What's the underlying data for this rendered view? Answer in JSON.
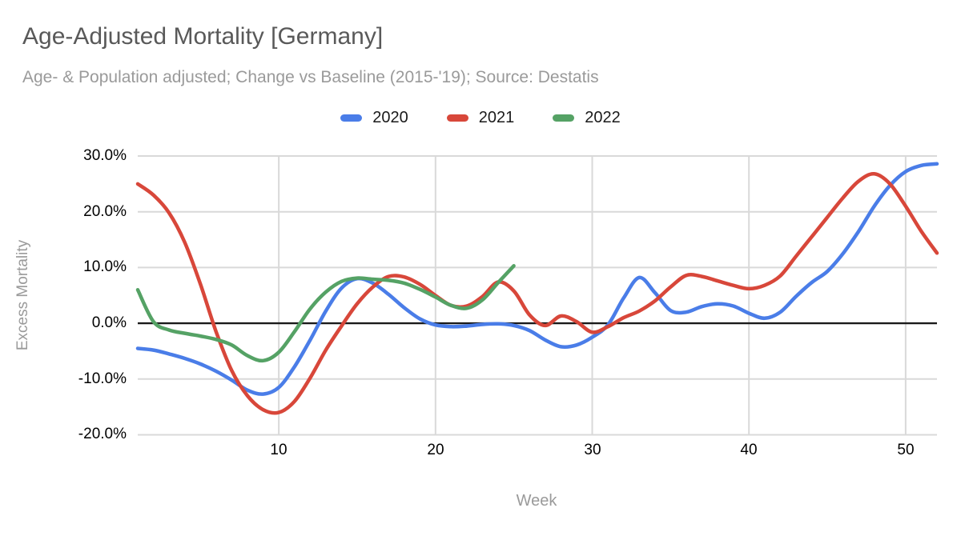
{
  "colors": {
    "grid": "#d9d9d9",
    "zero_line": "#1a1a1a",
    "title": "#595959",
    "subtitle": "#9a9a9a",
    "tick": "#000000",
    "axis_title": "#9a9a9a"
  },
  "chart_data": {
    "type": "line",
    "title": "Age-Adjusted Mortality [Germany]",
    "subtitle": "Age- & Population adjusted; Change vs Baseline (2015-'19); Source: Destatis",
    "xlabel": "Week",
    "ylabel": "Excess Mortality",
    "xlim": [
      1,
      52
    ],
    "ylim": [
      -20,
      30
    ],
    "x_ticks": [
      10,
      20,
      30,
      40,
      50
    ],
    "x_tick_labels": [
      "10",
      "20",
      "30",
      "40",
      "50"
    ],
    "y_ticks": [
      30,
      20,
      10,
      0,
      -10,
      -20
    ],
    "y_tick_labels": [
      "30.0%",
      "20.0%",
      "10.0%",
      "0.0%",
      "-10.0%",
      "-20.0%"
    ],
    "unit": "percent",
    "grid": true,
    "legend_position": "top",
    "x_unit": "week",
    "x_start": 1,
    "series": [
      {
        "name": "2020",
        "color": "#4a7de8",
        "values": [
          -4.5,
          -4.8,
          -5.5,
          -6.3,
          -7.3,
          -8.6,
          -10.2,
          -12.0,
          -12.7,
          -11.5,
          -7.8,
          -3.0,
          2.2,
          6.3,
          8.0,
          7.2,
          5.2,
          2.8,
          0.8,
          -0.3,
          -0.6,
          -0.5,
          -0.2,
          -0.1,
          -0.4,
          -1.3,
          -3.0,
          -4.2,
          -3.9,
          -2.5,
          -0.3,
          4.5,
          8.2,
          5.5,
          2.3,
          2.0,
          3.0,
          3.5,
          3.1,
          1.8,
          0.9,
          2.0,
          4.8,
          7.3,
          9.3,
          12.5,
          16.5,
          21.0,
          24.7,
          27.2,
          28.3,
          28.6
        ]
      },
      {
        "name": "2021",
        "color": "#d8473a",
        "values": [
          25.0,
          23.0,
          19.8,
          14.5,
          7.0,
          -1.5,
          -8.5,
          -13.0,
          -15.5,
          -16.0,
          -14.0,
          -9.8,
          -4.8,
          -0.5,
          3.5,
          6.5,
          8.4,
          8.3,
          7.0,
          5.0,
          3.2,
          3.1,
          4.8,
          7.4,
          5.8,
          1.5,
          -0.4,
          1.3,
          0.3,
          -1.6,
          -0.6,
          1.0,
          2.2,
          4.0,
          6.5,
          8.6,
          8.4,
          7.6,
          6.8,
          6.2,
          6.8,
          8.5,
          12.0,
          15.5,
          19.0,
          22.5,
          25.5,
          26.8,
          25.0,
          21.0,
          16.5,
          12.6
        ]
      },
      {
        "name": "2022",
        "color": "#55a265",
        "values": [
          6.0,
          0.3,
          -1.2,
          -1.8,
          -2.3,
          -2.9,
          -3.9,
          -5.8,
          -6.7,
          -5.2,
          -1.5,
          2.6,
          5.6,
          7.5,
          8.1,
          7.9,
          7.7,
          7.2,
          6.1,
          4.7,
          3.2,
          2.7,
          4.2,
          7.3,
          10.3
        ]
      }
    ]
  }
}
